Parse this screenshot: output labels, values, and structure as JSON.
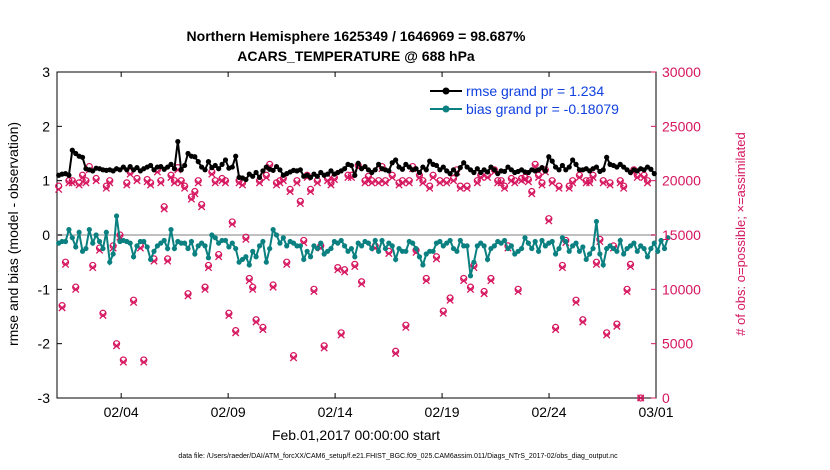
{
  "chart_data": {
    "type": "line",
    "title": [
      "Northern Hemisphere 1625349 / 1646969 = 98.687%",
      "ACARS_TEMPERATURE @ 688 hPa"
    ],
    "xlabel": "Feb.01,2017 00:00:00 start",
    "ylabel_left": "rmse and bias (model - observation)",
    "ylabel_right": "# of obs: o=possible; ×=assimilated",
    "footer": "data file: /Users/raeder/DAI/ATM_forcXX/CAM6_setup/f.e21.FHIST_BGC.f09_025.CAM6assim.011/Diags_NTrS_2017-02/obs_diag_output.nc",
    "xlim": [
      0,
      28
    ],
    "ylim_left": [
      -3,
      3
    ],
    "ylim_right": [
      0,
      30000
    ],
    "x_ticks": [
      3,
      8,
      13,
      18,
      23,
      28
    ],
    "x_tick_labels": [
      "02/04",
      "02/09",
      "02/14",
      "02/19",
      "02/24",
      "03/01"
    ],
    "y_left_ticks": [
      -3,
      -2,
      -1,
      0,
      1,
      2,
      3
    ],
    "y_right_ticks": [
      0,
      5000,
      10000,
      15000,
      20000,
      25000,
      30000
    ],
    "colors": {
      "rmse": "#000000",
      "bias": "#0b8080",
      "obs": "#d6155f",
      "zero": "#c0c0c0",
      "legend_text": "#1040e0"
    },
    "series": [
      {
        "name": "rmse grand pr = 1.234",
        "values": [
          1.1,
          1.12,
          1.13,
          1.1,
          1.56,
          1.5,
          1.45,
          1.43,
          1.22,
          1.2,
          1.18,
          1.23,
          1.22,
          1.2,
          1.19,
          1.2,
          1.18,
          1.22,
          1.2,
          1.25,
          1.2,
          1.26,
          1.2,
          1.24,
          1.18,
          1.22,
          1.25,
          1.28,
          1.2,
          1.25,
          1.26,
          1.21,
          1.25,
          1.3,
          1.22,
          1.72,
          1.2,
          1.28,
          1.5,
          1.45,
          1.44,
          1.35,
          1.25,
          1.2,
          1.35,
          1.24,
          1.28,
          1.22,
          1.3,
          1.38,
          1.23,
          1.25,
          1.45,
          1.06,
          1.05,
          1.02,
          1.12,
          1.08,
          1.15,
          1.06,
          1.18,
          1.25,
          1.21,
          1.19,
          1.26,
          1.2,
          1.1,
          1.13,
          1.16,
          1.19,
          1.18,
          1.2,
          1.08,
          1.1,
          1.06,
          1.12,
          1.08,
          1.15,
          1.1,
          1.12,
          1.18,
          1.12,
          1.15,
          1.18,
          1.22,
          1.3,
          1.28,
          1.1,
          1.32,
          1.22,
          1.26,
          1.2,
          1.15,
          1.2,
          1.3,
          1.22,
          1.2,
          1.18,
          1.33,
          1.38,
          1.25,
          1.21,
          1.3,
          1.25,
          1.2,
          1.22,
          1.15,
          1.25,
          1.2,
          1.36,
          1.3,
          1.28,
          1.2,
          1.25,
          1.18,
          1.13,
          1.2,
          1.12,
          1.24,
          1.33,
          1.25,
          1.2,
          1.15,
          1.22,
          1.15,
          1.2,
          1.16,
          1.25,
          1.2,
          1.13,
          1.18,
          1.17,
          1.25,
          1.2,
          1.15,
          1.17,
          1.2,
          1.16,
          1.15,
          1.2,
          1.18,
          1.2,
          1.24,
          1.18,
          1.44,
          1.36,
          1.25,
          1.2,
          1.28,
          1.2,
          1.25,
          1.38,
          1.3,
          1.2,
          1.2,
          1.22,
          1.18,
          1.22,
          1.25,
          1.17,
          1.2,
          1.43,
          1.3,
          1.28,
          1.25,
          1.3,
          1.25,
          1.2,
          1.15,
          1.2,
          1.18,
          1.22,
          1.2,
          1.25,
          1.21,
          1.13
        ]
      },
      {
        "name": "bias grand pr = -0.18079",
        "values": [
          -0.15,
          -0.12,
          -0.12,
          0.1,
          -0.05,
          -0.22,
          0.05,
          -0.3,
          -0.25,
          0.1,
          -0.15,
          0.0,
          -0.12,
          -0.25,
          0.05,
          -0.5,
          -0.35,
          0.35,
          -0.12,
          -0.1,
          -0.12,
          -0.15,
          -0.4,
          -0.2,
          -0.12,
          -0.12,
          -0.22,
          -0.45,
          -0.3,
          -0.2,
          -0.15,
          -0.1,
          -0.25,
          0.1,
          -0.25,
          -0.12,
          -0.15,
          -0.15,
          -0.25,
          -0.12,
          -0.35,
          -0.2,
          -0.15,
          -0.2,
          -0.42,
          0.0,
          -0.05,
          -0.15,
          -0.1,
          -0.1,
          -0.22,
          -0.15,
          -0.25,
          -0.5,
          -0.45,
          -0.4,
          -0.55,
          -0.3,
          -0.4,
          -0.2,
          -0.12,
          -0.5,
          -0.25,
          0.1,
          0.0,
          -0.15,
          -0.05,
          -0.2,
          -0.12,
          -0.15,
          -0.2,
          -0.2,
          -0.45,
          -0.3,
          -0.4,
          -0.2,
          -0.25,
          -0.15,
          -0.35,
          -0.3,
          -0.25,
          -0.12,
          -0.15,
          -0.1,
          -0.2,
          -0.3,
          -0.25,
          -0.4,
          -0.15,
          -0.2,
          -0.12,
          -0.15,
          -0.25,
          -0.1,
          -0.3,
          -0.1,
          -0.25,
          -0.15,
          -0.2,
          -0.45,
          -0.25,
          -0.3,
          -0.3,
          -0.12,
          -0.15,
          -0.25,
          -0.4,
          -0.55,
          -0.35,
          -0.3,
          -0.3,
          -0.15,
          -0.12,
          -0.2,
          -0.15,
          -0.1,
          -0.25,
          -0.3,
          -0.1,
          -0.2,
          -0.2,
          -0.75,
          -0.5,
          -0.2,
          -0.15,
          -0.2,
          -0.45,
          -0.25,
          -0.2,
          -0.12,
          -0.15,
          -0.1,
          -0.25,
          -0.2,
          -0.35,
          -0.3,
          -0.25,
          -0.05,
          -0.15,
          -0.25,
          -0.12,
          -0.3,
          -0.1,
          -0.2,
          -0.15,
          -0.12,
          -0.35,
          -0.25,
          -0.05,
          -0.12,
          -0.3,
          -0.2,
          -0.15,
          -0.3,
          -0.22,
          -0.45,
          -0.35,
          -0.25,
          0.25,
          -0.35,
          -0.55,
          -0.25,
          -0.2,
          -0.25,
          -0.3,
          -0.1,
          -0.35,
          -0.25,
          -0.2,
          -0.15,
          -0.3,
          -0.2,
          -0.25,
          -0.4,
          -0.25,
          -0.15,
          -0.3,
          -0.1,
          -0.25,
          -0.05
        ]
      },
      {
        "name": "possible obs",
        "values": [
          19500,
          8500,
          12500,
          20000,
          20000,
          10200,
          19800,
          20500,
          20000,
          21300,
          12200,
          20200,
          13800,
          7800,
          19500,
          20000,
          14000,
          5000,
          15000,
          3500,
          19800,
          20800,
          9000,
          20200,
          14000,
          3500,
          20100,
          19800,
          12800,
          21000,
          20000,
          17600,
          12800,
          20500,
          20000,
          21200,
          20000,
          19500,
          9600,
          18500,
          19000,
          20000,
          17800,
          10200,
          12200,
          20800,
          20000,
          13200,
          20200,
          20000,
          7800,
          16200,
          6200,
          20000,
          19800,
          14800,
          11000,
          10200,
          7200,
          20000,
          6500,
          20500,
          21500,
          10400,
          19800,
          20000,
          20200,
          12500,
          19200,
          3900,
          20000,
          18100,
          14500,
          20500,
          19200,
          10000,
          20000,
          14000,
          4800,
          20200,
          19800,
          20300,
          12000,
          6000,
          11800,
          20500,
          20500,
          12300,
          21400,
          10700,
          20000,
          20400,
          20000,
          14000,
          20000,
          21300,
          20000,
          13500,
          20500,
          4300,
          19800,
          20000,
          6700,
          20000,
          21300,
          13600,
          20500,
          20000,
          11000,
          19500,
          20500,
          13000,
          20000,
          8000,
          20000,
          9200,
          20200,
          21000,
          19500,
          11000,
          19500,
          10200,
          12200,
          20000,
          20500,
          9800,
          20500,
          11000,
          21000,
          20000,
          20000,
          19500,
          14000,
          20200,
          20000,
          10000,
          20200,
          20300,
          20100,
          19000,
          21500,
          20500,
          19800,
          21000,
          16500,
          20000,
          6500,
          19500,
          12200,
          14500,
          19500,
          20000,
          9000,
          20500,
          7200,
          20000,
          20000,
          20500,
          12500,
          14600,
          20000,
          6000,
          19800,
          14000,
          6800,
          20000,
          19500,
          10000,
          12300,
          21000,
          20500,
          0,
          20500,
          20000
        ]
      },
      {
        "name": "assimilated obs",
        "values": [
          19200,
          8300,
          12300,
          19800,
          19800,
          10000,
          19600,
          20300,
          19800,
          21000,
          12000,
          20000,
          13600,
          7600,
          19300,
          19800,
          13800,
          4800,
          14800,
          3300,
          19600,
          20600,
          8800,
          20000,
          13800,
          3300,
          19900,
          19600,
          12600,
          20800,
          19800,
          17400,
          12600,
          20300,
          19800,
          21000,
          19800,
          19300,
          9400,
          18300,
          18800,
          19800,
          17600,
          10000,
          12000,
          20600,
          19800,
          13000,
          20000,
          19800,
          7600,
          16000,
          6000,
          19800,
          19600,
          14600,
          10800,
          10000,
          7000,
          19800,
          6300,
          20300,
          21300,
          10200,
          19600,
          19800,
          20000,
          12300,
          19000,
          3700,
          19800,
          17900,
          14300,
          20300,
          19000,
          9800,
          19800,
          13800,
          4600,
          20000,
          19600,
          20100,
          11800,
          5800,
          11600,
          20300,
          20300,
          12100,
          21200,
          10500,
          19800,
          20200,
          19800,
          13800,
          19800,
          21100,
          19800,
          13300,
          20300,
          4100,
          19600,
          19800,
          6500,
          19800,
          21100,
          13400,
          20300,
          19800,
          10800,
          19300,
          20300,
          12800,
          19800,
          7800,
          19800,
          9000,
          20000,
          20800,
          19300,
          10800,
          19300,
          10000,
          12000,
          19800,
          20300,
          9600,
          20300,
          10800,
          20800,
          19800,
          19800,
          19300,
          13800,
          20000,
          19800,
          9800,
          20000,
          20100,
          19900,
          18800,
          21300,
          20300,
          19600,
          20800,
          16300,
          19800,
          6300,
          19300,
          12000,
          14300,
          19300,
          19800,
          8800,
          20300,
          7000,
          19800,
          19800,
          20300,
          12300,
          14400,
          19800,
          5800,
          19600,
          13800,
          6600,
          19800,
          19300,
          9800,
          12100,
          20800,
          20300,
          0,
          20300,
          19800
        ]
      }
    ]
  },
  "legend": {
    "rmse_label": "rmse grand pr = 1.234",
    "bias_label": "bias grand pr = -0.18079",
    "position": "top-right"
  }
}
